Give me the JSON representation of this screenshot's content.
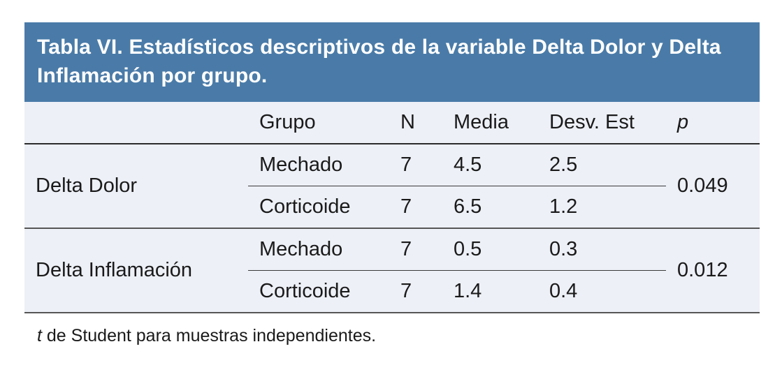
{
  "title": "Tabla VI. Estadísticos descriptivos de la variable Delta Dolor y Delta Inflamación por grupo.",
  "colors": {
    "title_bar_bg": "#4a7ba8",
    "title_text": "#ffffff",
    "table_bg": "#edf0f7",
    "body_text": "#1a1a1a"
  },
  "table": {
    "columns": [
      "",
      "Grupo",
      "N",
      "Media",
      "Desv. Est",
      "p"
    ],
    "groups": [
      {
        "label": "Delta Dolor",
        "p": "0.049",
        "rows": [
          {
            "grupo": "Mechado",
            "n": "7",
            "media": "4.5",
            "desv": "2.5"
          },
          {
            "grupo": "Corticoide",
            "n": "7",
            "media": "6.5",
            "desv": "1.2"
          }
        ]
      },
      {
        "label": "Delta Inflamación",
        "p": "0.012",
        "rows": [
          {
            "grupo": "Mechado",
            "n": "7",
            "media": "0.5",
            "desv": "0.3"
          },
          {
            "grupo": "Corticoide",
            "n": "7",
            "media": "1.4",
            "desv": "0.4"
          }
        ]
      }
    ]
  },
  "footnote": {
    "symbol": "t",
    "text": " de Student para muestras independientes."
  }
}
